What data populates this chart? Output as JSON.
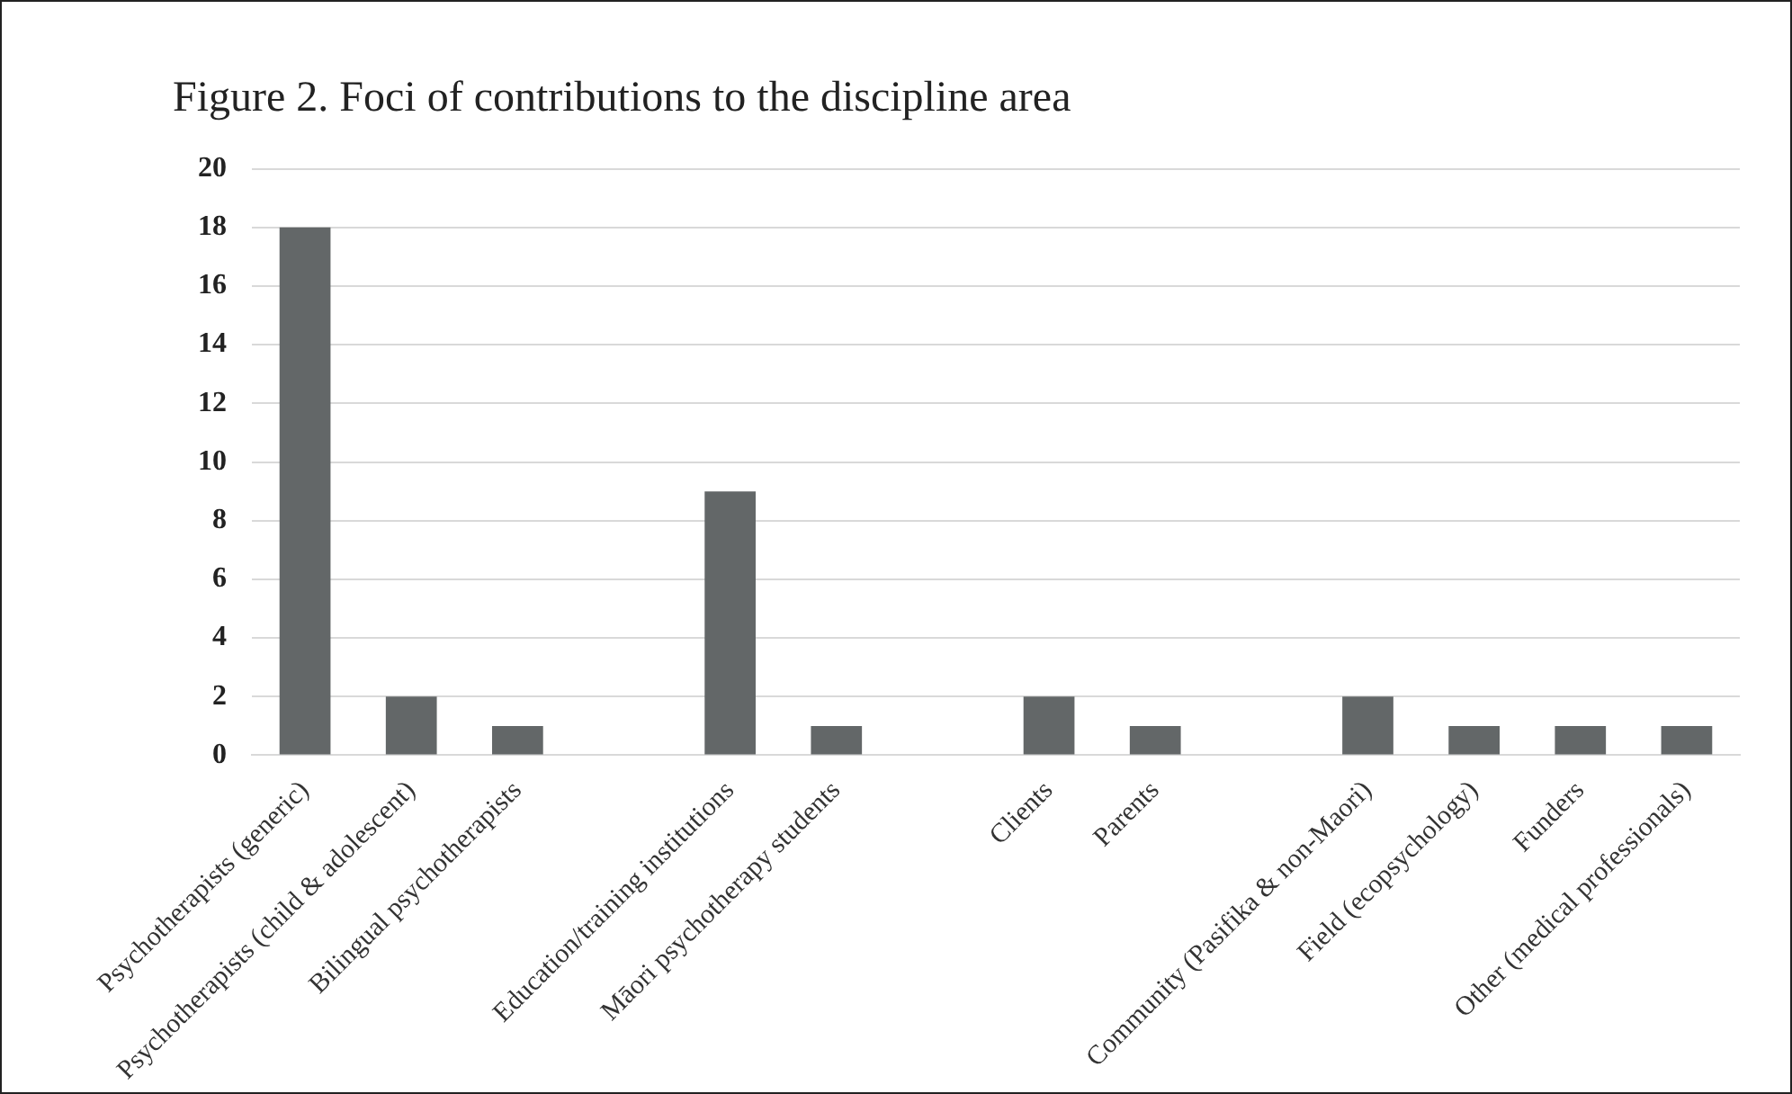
{
  "chart_data": {
    "type": "bar",
    "title": "Figure 2. Foci of contributions to the discipline area",
    "categories": [
      "Psychotherapists (generic)",
      "Psychotherapists (child & adolescent)",
      "Bilingual psychotherapists",
      null,
      "Education/training institutions",
      "Māori psychotherapy students",
      null,
      "Clients",
      "Parents",
      null,
      "Community (Pasifika & non-Maori)",
      "Field (ecopsychology)",
      "Funders",
      "Other (medical professionals)"
    ],
    "values": [
      18,
      2,
      1,
      null,
      9,
      1,
      null,
      2,
      1,
      null,
      2,
      1,
      1,
      1
    ],
    "color": "#636768",
    "ylim": [
      0,
      20
    ],
    "yticks": [
      0,
      2,
      4,
      6,
      8,
      10,
      12,
      14,
      16,
      18,
      20
    ],
    "grid": "y",
    "legend": false
  }
}
